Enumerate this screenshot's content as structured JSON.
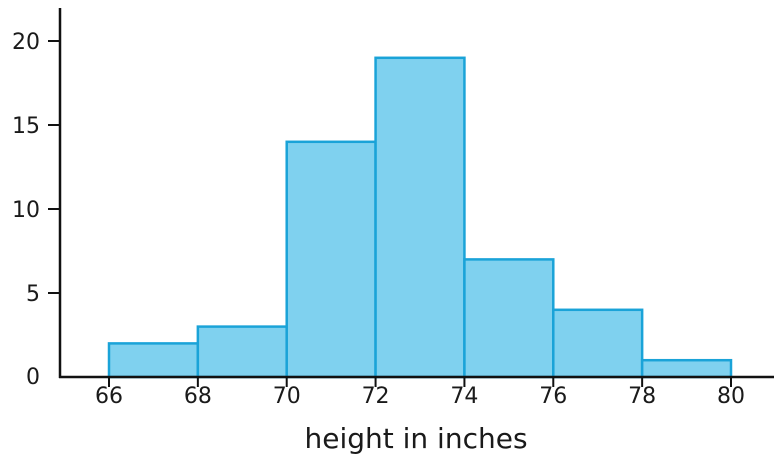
{
  "chart_data": {
    "type": "bar",
    "subtype": "histogram",
    "bins": [
      {
        "start": 66,
        "end": 68,
        "count": 2
      },
      {
        "start": 68,
        "end": 70,
        "count": 3
      },
      {
        "start": 70,
        "end": 72,
        "count": 14
      },
      {
        "start": 72,
        "end": 74,
        "count": 19
      },
      {
        "start": 74,
        "end": 76,
        "count": 7
      },
      {
        "start": 76,
        "end": 78,
        "count": 4
      },
      {
        "start": 78,
        "end": 80,
        "count": 1
      }
    ],
    "xlabel": "height in inches",
    "ylabel": "",
    "title": "",
    "x_ticks": [
      "66",
      "68",
      "70",
      "72",
      "74",
      "76",
      "78",
      "80"
    ],
    "y_ticks": [
      "0",
      "5",
      "10",
      "15",
      "20"
    ],
    "xlim": [
      66,
      80
    ],
    "ylim": [
      0,
      20
    ],
    "grid": false,
    "legend": "none",
    "colors": {
      "bar_fill": "#7fd1ef",
      "bar_stroke": "#1aa3d8",
      "axis": "#111111"
    }
  }
}
